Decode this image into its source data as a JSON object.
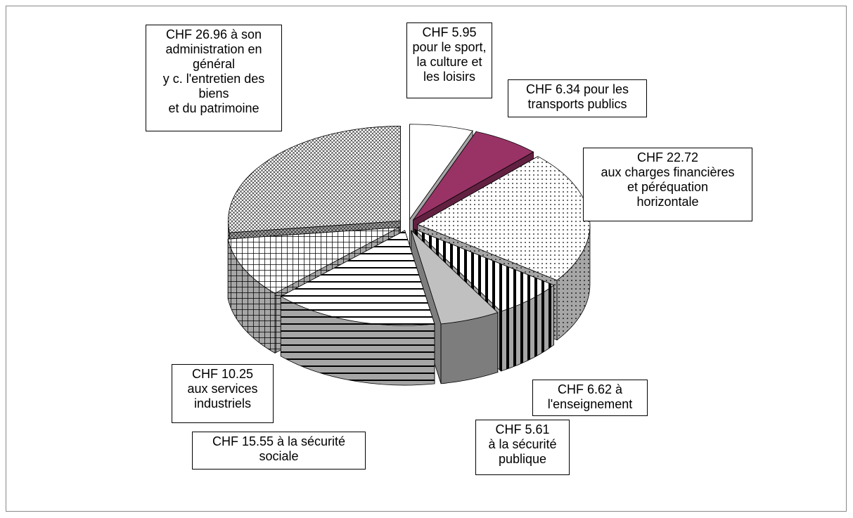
{
  "chart_data": {
    "type": "pie3d",
    "values": [
      5.95,
      6.34,
      22.72,
      6.62,
      5.61,
      15.55,
      10.25,
      26.96
    ],
    "value_labels": [
      "CHF 5.95\npour le sport,\nla culture et\nles loisirs",
      "CHF 6.34 pour les\ntransports publics",
      "CHF 22.72\naux charges financières\net péréquation\nhorizontale",
      "CHF 6.62 à\nl'enseignement",
      "CHF 5.61\nà la sécurité\npublique",
      "CHF 15.55 à la sécurité\nsociale",
      "CHF 10.25\naux services\nindustriels",
      "CHF 26.96 à son\nadministration en\ngénéral\ny c. l'entretien des\nbiens\n et du patrimoine"
    ],
    "colors": [
      "#ffffff",
      "#993366",
      "#ffffff",
      "#ffffff",
      "#c0c0c0",
      "#ffffff",
      "#ffffff",
      "#ffffff"
    ],
    "patterns": [
      null,
      null,
      "dots",
      "vlines",
      null,
      "hlines",
      "grid",
      "diag"
    ]
  }
}
